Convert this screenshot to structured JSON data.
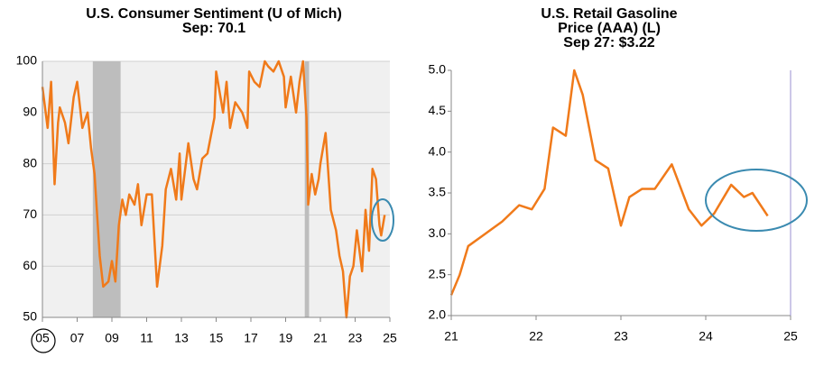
{
  "chart_data": [
    {
      "type": "line",
      "title": [
        "U.S. Consumer Sentiment (U of Mich)"
      ],
      "subtitle": "Sep: 70.1",
      "x": [
        5.0,
        5.3,
        5.5,
        5.7,
        5.9,
        6.0,
        6.3,
        6.5,
        6.8,
        7.0,
        7.3,
        7.6,
        7.8,
        8.0,
        8.3,
        8.5,
        8.8,
        9.0,
        9.2,
        9.4,
        9.6,
        9.8,
        10.0,
        10.3,
        10.5,
        10.7,
        11.0,
        11.3,
        11.6,
        11.9,
        12.1,
        12.4,
        12.7,
        12.9,
        13.0,
        13.4,
        13.7,
        13.9,
        14.2,
        14.5,
        14.9,
        15.0,
        15.4,
        15.6,
        15.8,
        16.1,
        16.5,
        16.8,
        16.9,
        17.2,
        17.5,
        17.8,
        18.0,
        18.3,
        18.6,
        18.9,
        19.0,
        19.3,
        19.6,
        19.8,
        20.0,
        20.2,
        20.3,
        20.5,
        20.7,
        20.9,
        21.0,
        21.3,
        21.6,
        21.9,
        22.1,
        22.3,
        22.5,
        22.7,
        22.9,
        23.1,
        23.4,
        23.6,
        23.8,
        24.0,
        24.2,
        24.4,
        24.5,
        24.6,
        24.7
      ],
      "series": [
        {
          "name": "Consumer Sentiment",
          "color": "#f07a1a",
          "values": [
            95,
            87,
            96,
            76,
            88,
            91,
            88,
            84,
            93,
            96,
            87,
            90,
            83,
            78,
            62,
            56,
            57,
            61,
            57,
            68,
            73,
            70,
            74,
            72,
            76,
            68,
            74,
            74,
            56,
            64,
            75,
            79,
            73,
            82,
            73,
            84,
            77,
            75,
            81,
            82,
            89,
            98,
            90,
            96,
            87,
            92,
            90,
            87,
            98,
            96,
            95,
            100,
            99,
            98,
            100,
            97,
            91,
            97,
            90,
            96,
            100,
            89,
            72,
            78,
            74,
            77,
            80,
            86,
            71,
            67,
            62,
            59,
            50,
            58,
            60,
            67,
            59,
            71,
            63,
            79,
            77,
            68,
            66,
            68,
            70
          ]
        }
      ],
      "shaded": [
        [
          7.9,
          9.5
        ],
        [
          20.1,
          20.35
        ]
      ],
      "xlim": [
        5,
        25
      ],
      "xticks": [
        {
          "value": 5,
          "label": "05"
        },
        {
          "value": 7,
          "label": "07"
        },
        {
          "value": 9,
          "label": "09"
        },
        11,
        13,
        15,
        17,
        19,
        21,
        23,
        25
      ],
      "ylim": [
        50,
        100
      ],
      "yticks": [
        50,
        60,
        70,
        80,
        90,
        100
      ],
      "grid": true
    },
    {
      "type": "line",
      "title": [
        "U.S. Retail Gasoline",
        "Price (AAA)  (L)"
      ],
      "subtitle": "Sep 27: $3.22",
      "x": [
        21.0,
        21.1,
        21.2,
        21.4,
        21.6,
        21.8,
        21.95,
        22.1,
        22.2,
        22.35,
        22.45,
        22.55,
        22.7,
        22.85,
        23.0,
        23.1,
        23.25,
        23.4,
        23.6,
        23.8,
        23.95,
        24.1,
        24.3,
        24.45,
        24.55,
        24.73
      ],
      "series": [
        {
          "name": "Gasoline Price",
          "color": "#f07a1a",
          "values": [
            2.25,
            2.5,
            2.85,
            3.0,
            3.15,
            3.35,
            3.3,
            3.55,
            4.3,
            4.2,
            5.0,
            4.7,
            3.9,
            3.8,
            3.1,
            3.45,
            3.55,
            3.55,
            3.85,
            3.3,
            3.1,
            3.25,
            3.6,
            3.45,
            3.5,
            3.22
          ]
        }
      ],
      "xlim": [
        21,
        25
      ],
      "xticks": [
        21,
        22,
        23,
        24,
        25
      ],
      "ylim": [
        2,
        5
      ],
      "yticks": [
        {
          "value": 2,
          "label": "2.0"
        },
        {
          "value": 2.5,
          "label": "2.5"
        },
        {
          "value": 3,
          "label": "3.0"
        },
        {
          "value": 3.5,
          "label": "3.5"
        },
        {
          "value": 4,
          "label": "4.0"
        },
        {
          "value": 4.5,
          "label": "4.5"
        },
        {
          "value": 5,
          "label": "5.0"
        }
      ],
      "grid": false
    }
  ]
}
